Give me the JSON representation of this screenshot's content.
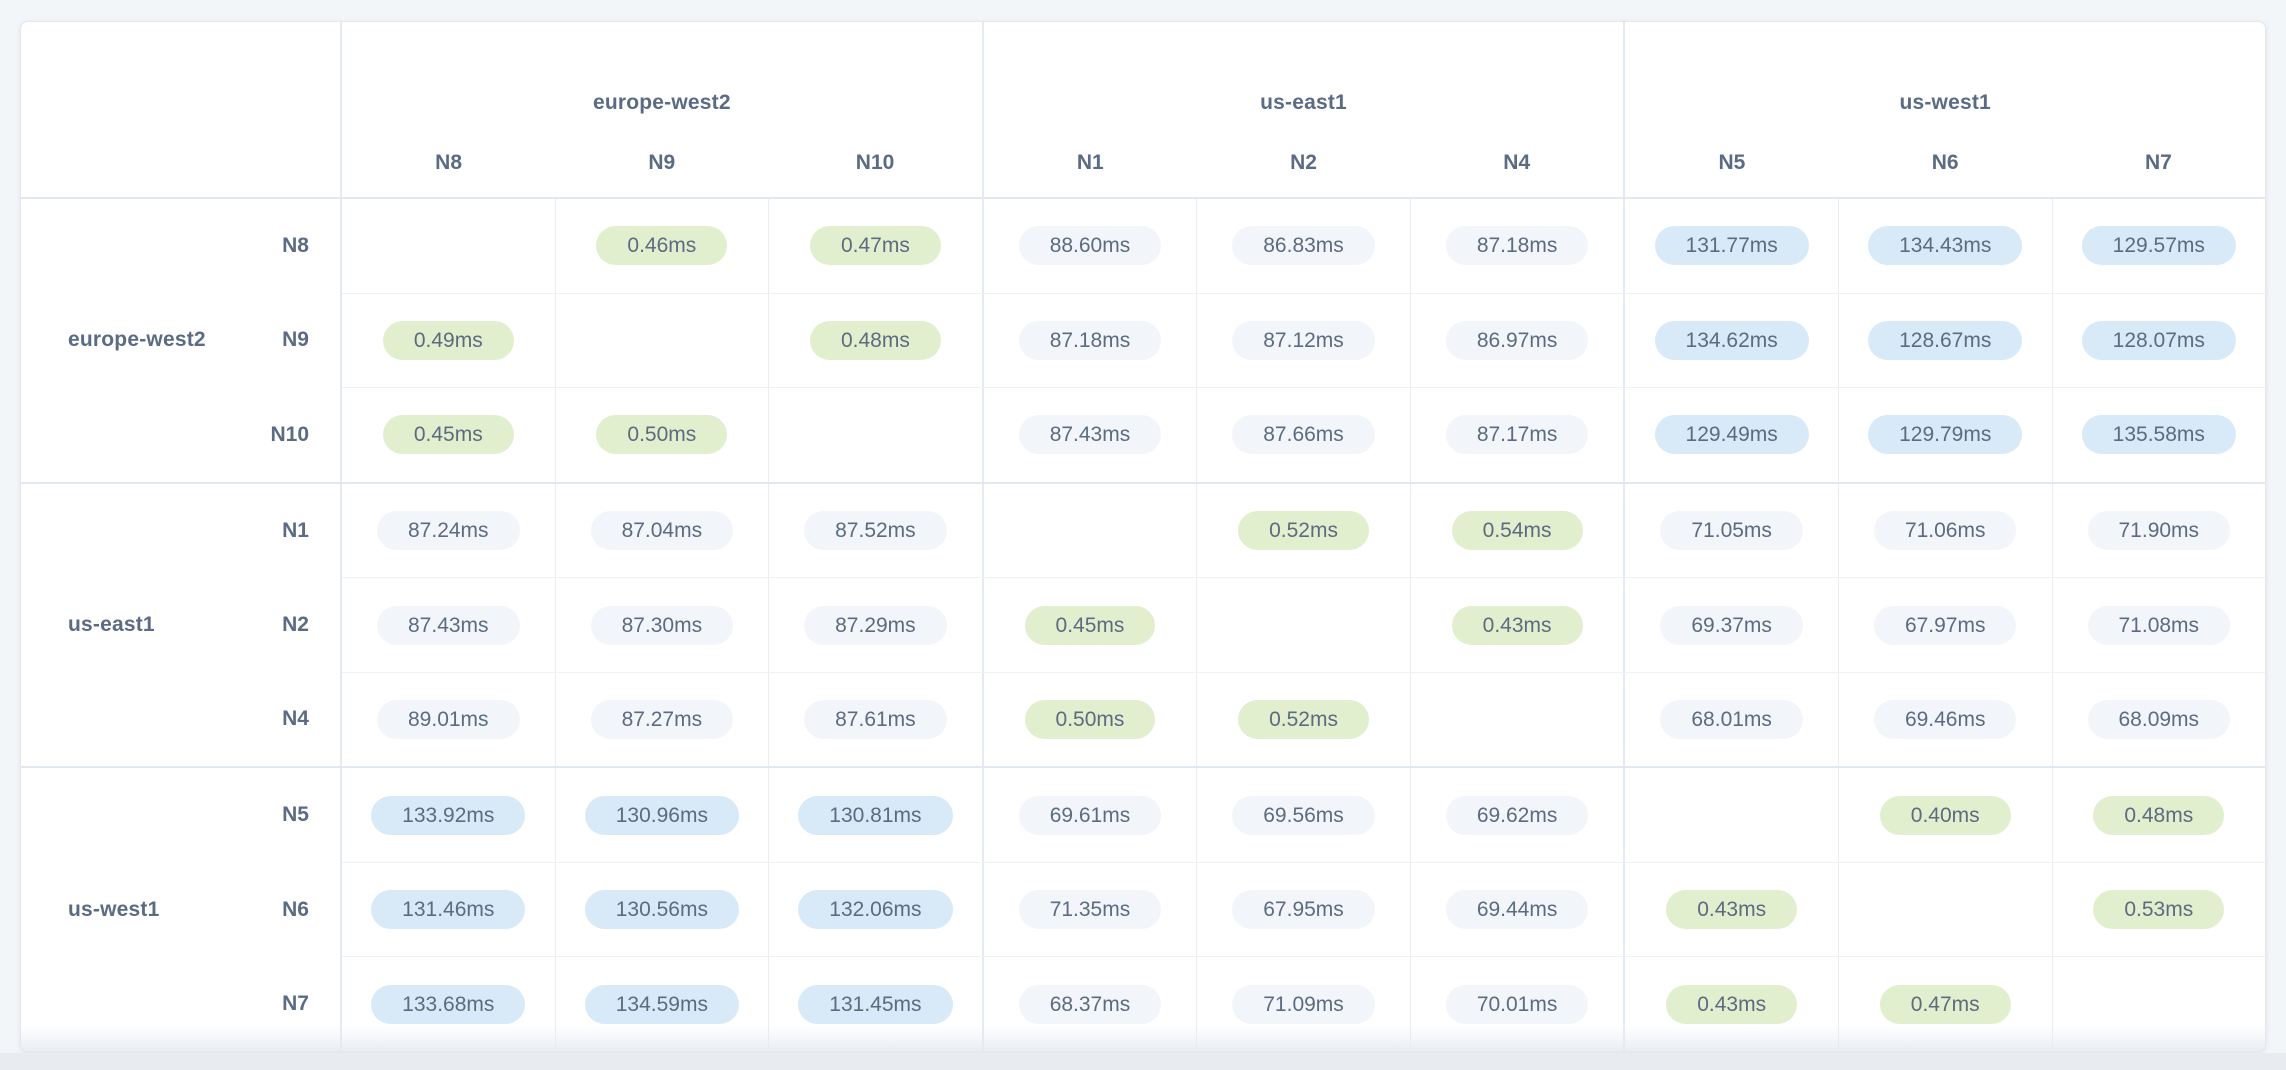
{
  "latency_matrix": {
    "unit": "ms",
    "groups": [
      {
        "region": "europe-west2",
        "nodes": [
          "N8",
          "N9",
          "N10"
        ]
      },
      {
        "region": "us-east1",
        "nodes": [
          "N1",
          "N2",
          "N4"
        ]
      },
      {
        "region": "us-west1",
        "nodes": [
          "N5",
          "N6",
          "N7"
        ]
      }
    ],
    "columns": [
      "N8",
      "N9",
      "N10",
      "N1",
      "N2",
      "N4",
      "N5",
      "N6",
      "N7"
    ],
    "rows": [
      {
        "node": "N8",
        "region": "europe-west2",
        "cells": [
          "",
          "0.46ms",
          "0.47ms",
          "88.60ms",
          "86.83ms",
          "87.18ms",
          "131.77ms",
          "134.43ms",
          "129.57ms"
        ]
      },
      {
        "node": "N9",
        "region": "europe-west2",
        "cells": [
          "0.49ms",
          "",
          "0.48ms",
          "87.18ms",
          "87.12ms",
          "86.97ms",
          "134.62ms",
          "128.67ms",
          "128.07ms"
        ]
      },
      {
        "node": "N10",
        "region": "europe-west2",
        "cells": [
          "0.45ms",
          "0.50ms",
          "",
          "87.43ms",
          "87.66ms",
          "87.17ms",
          "129.49ms",
          "129.79ms",
          "135.58ms"
        ]
      },
      {
        "node": "N1",
        "region": "us-east1",
        "cells": [
          "87.24ms",
          "87.04ms",
          "87.52ms",
          "",
          "0.52ms",
          "0.54ms",
          "71.05ms",
          "71.06ms",
          "71.90ms"
        ]
      },
      {
        "node": "N2",
        "region": "us-east1",
        "cells": [
          "87.43ms",
          "87.30ms",
          "87.29ms",
          "0.45ms",
          "",
          "0.43ms",
          "69.37ms",
          "67.97ms",
          "71.08ms"
        ]
      },
      {
        "node": "N4",
        "region": "us-east1",
        "cells": [
          "89.01ms",
          "87.27ms",
          "87.61ms",
          "0.50ms",
          "0.52ms",
          "",
          "68.01ms",
          "69.46ms",
          "68.09ms"
        ]
      },
      {
        "node": "N5",
        "region": "us-west1",
        "cells": [
          "133.92ms",
          "130.96ms",
          "130.81ms",
          "69.61ms",
          "69.56ms",
          "69.62ms",
          "",
          "0.40ms",
          "0.48ms"
        ]
      },
      {
        "node": "N6",
        "region": "us-west1",
        "cells": [
          "131.46ms",
          "130.56ms",
          "132.06ms",
          "71.35ms",
          "67.95ms",
          "69.44ms",
          "0.43ms",
          "",
          "0.53ms"
        ]
      },
      {
        "node": "N7",
        "region": "us-west1",
        "cells": [
          "133.68ms",
          "134.59ms",
          "131.45ms",
          "68.37ms",
          "71.09ms",
          "70.01ms",
          "0.43ms",
          "0.47ms",
          ""
        ]
      }
    ],
    "colors": {
      "same_region_pill": "#e1efce",
      "mid_latency_pill": "#f2f5f9",
      "high_latency_pill": "#d8e9f8",
      "page_background": "#f3f6f9"
    }
  }
}
